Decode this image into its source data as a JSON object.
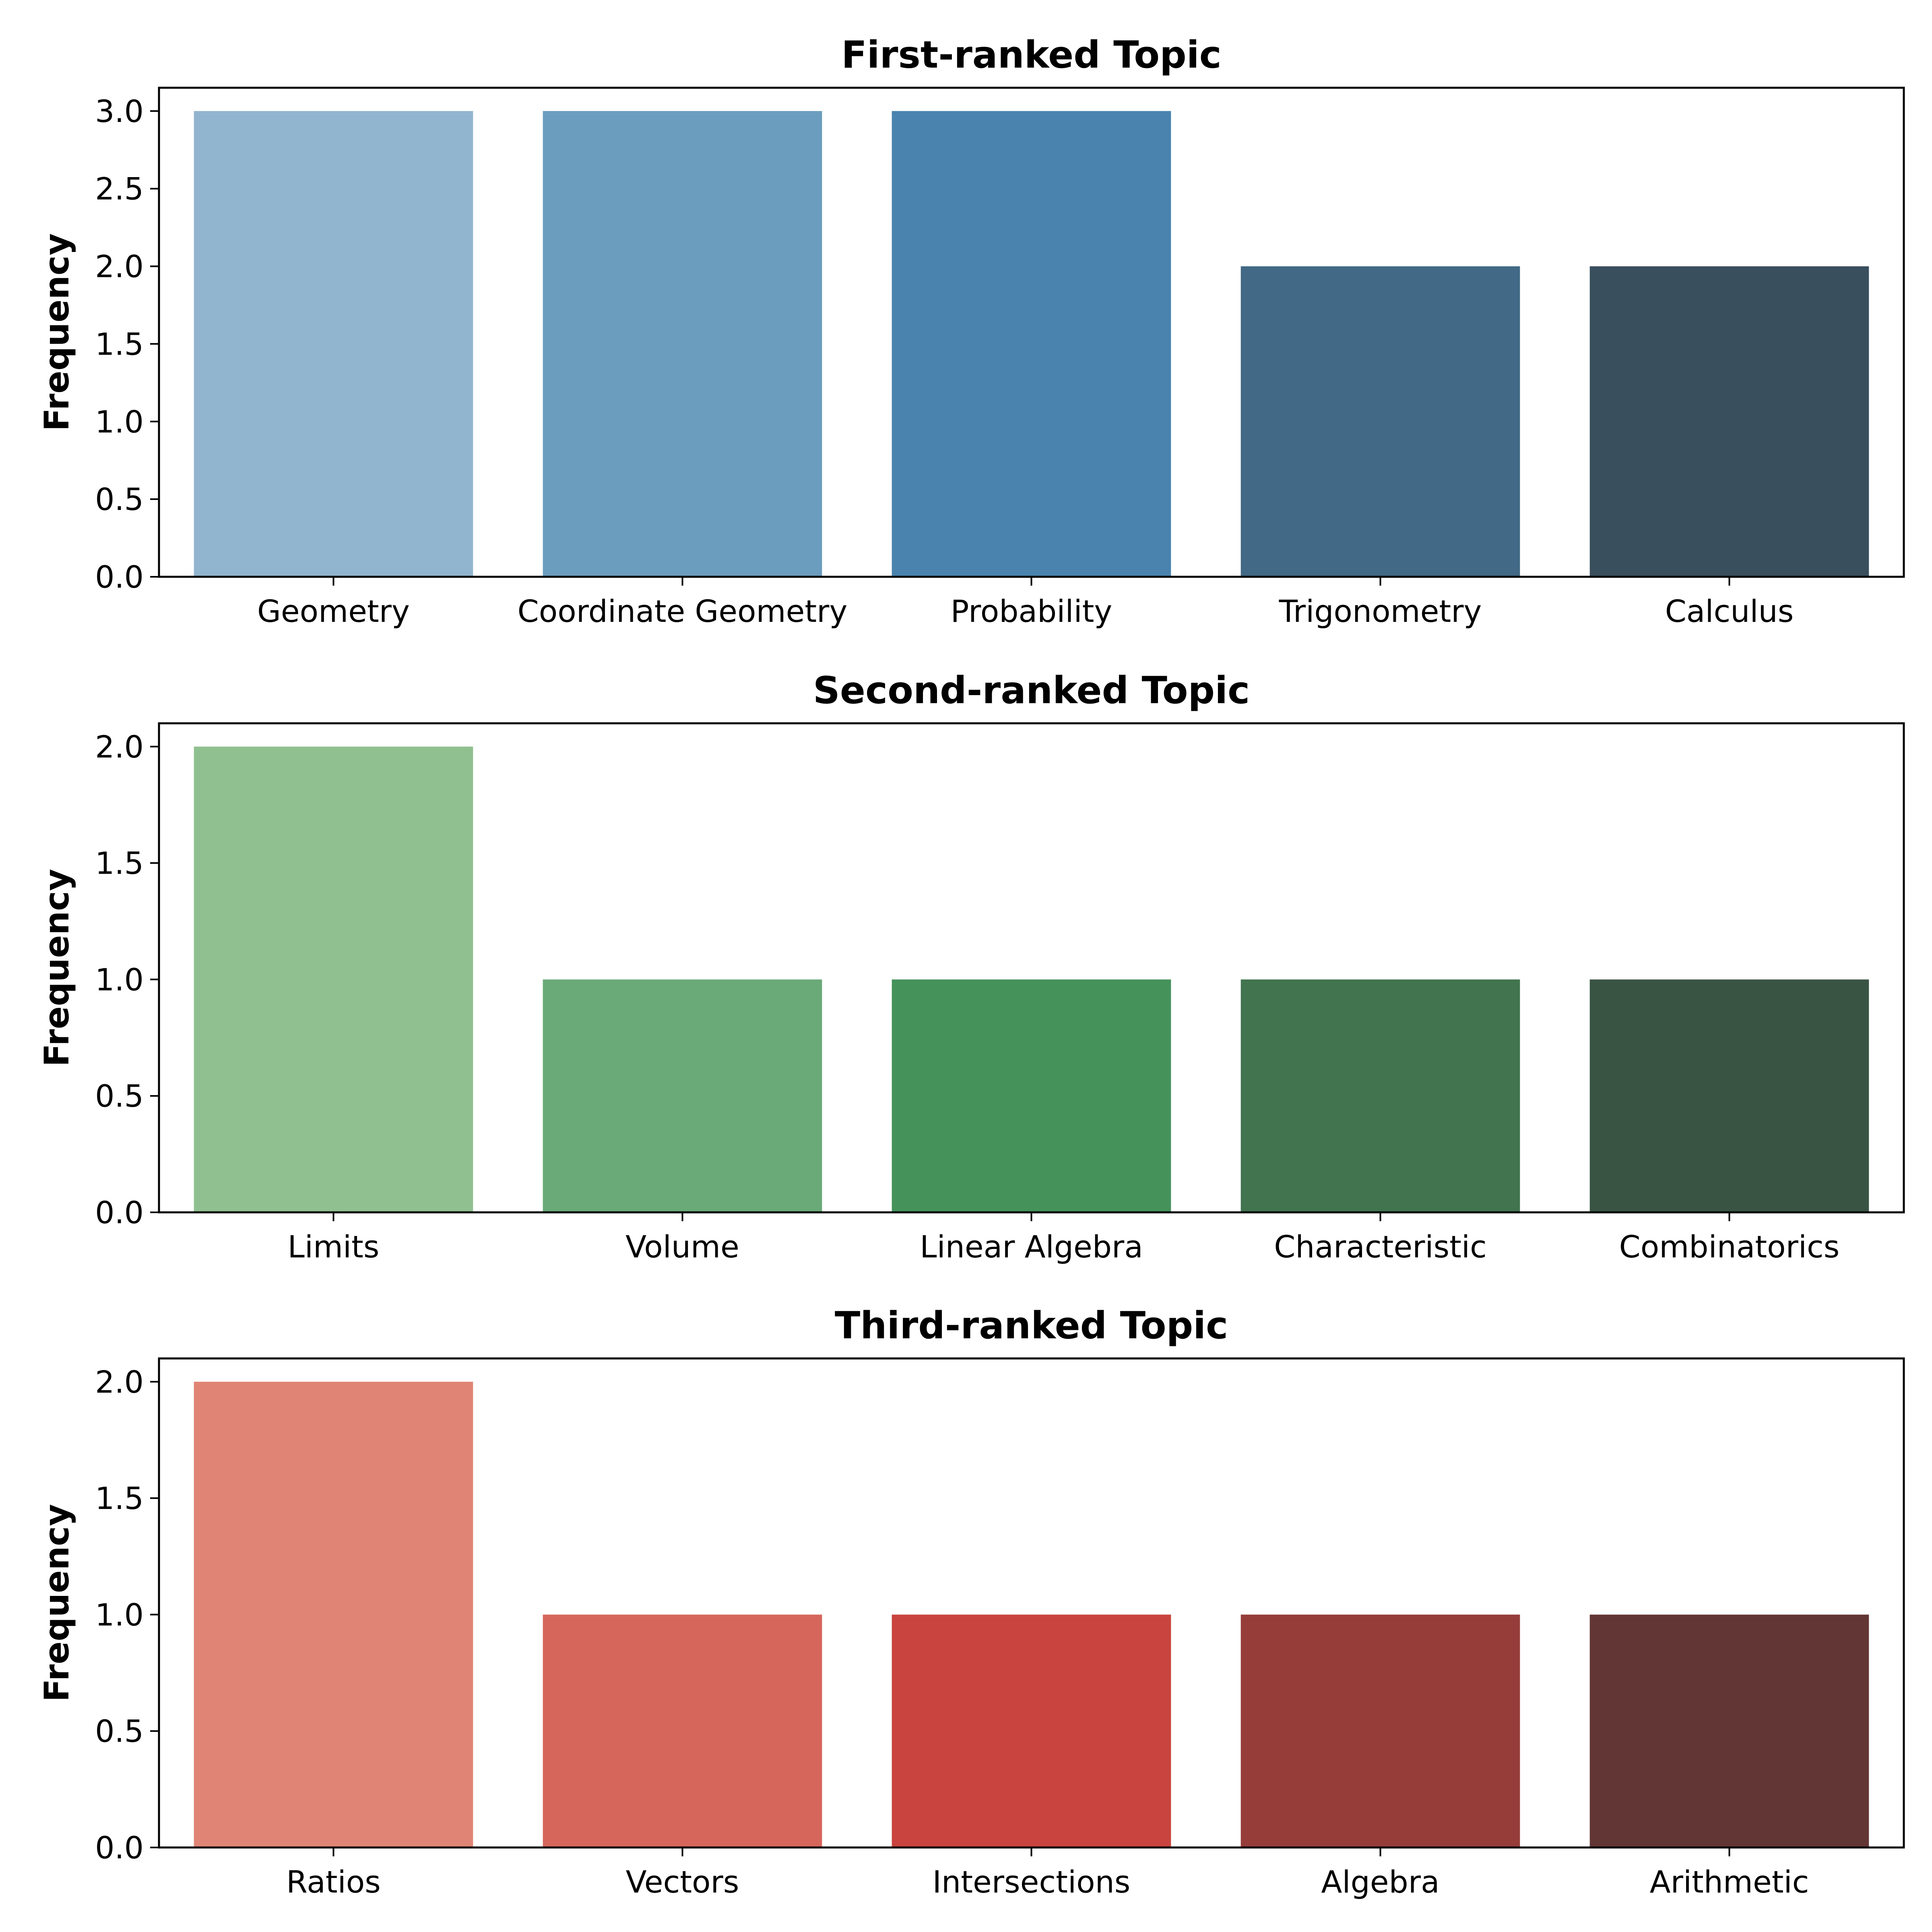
{
  "chart_data": [
    {
      "type": "bar",
      "title": "First-ranked Topic",
      "xlabel": "",
      "ylabel": "Frequency",
      "categories": [
        "Geometry",
        "Coordinate Geometry",
        "Probability",
        "Trigonometry",
        "Calculus"
      ],
      "values": [
        3,
        3,
        3,
        2,
        2
      ],
      "colors": [
        "#92b5cf",
        "#6b9dbf",
        "#4983ae",
        "#426985",
        "#3a4f5e"
      ],
      "ylim": [
        0,
        3.15
      ],
      "yticks": [
        "0.0",
        "0.5",
        "1.0",
        "1.5",
        "2.0",
        "2.5",
        "3.0"
      ],
      "grid": false
    },
    {
      "type": "bar",
      "title": "Second-ranked Topic",
      "xlabel": "",
      "ylabel": "Frequency",
      "categories": [
        "Limits",
        "Volume",
        "Linear Algebra",
        "Characteristic",
        "Combinatorics"
      ],
      "values": [
        2,
        1,
        1,
        1,
        1
      ],
      "colors": [
        "#90c090",
        "#6aa978",
        "#45925b",
        "#41744f",
        "#3a5444"
      ],
      "ylim": [
        0,
        2.1
      ],
      "yticks": [
        "0.0",
        "0.5",
        "1.0",
        "1.5",
        "2.0"
      ],
      "grid": false
    },
    {
      "type": "bar",
      "title": "Third-ranked Topic",
      "xlabel": "",
      "ylabel": "Frequency",
      "categories": [
        "Ratios",
        "Vectors",
        "Intersections",
        "Algebra",
        "Arithmetic"
      ],
      "values": [
        2,
        1,
        1,
        1,
        1
      ],
      "colors": [
        "#e08575",
        "#d6665b",
        "#c9443e",
        "#963d3a",
        "#633636"
      ],
      "ylim": [
        0,
        2.1
      ],
      "yticks": [
        "0.0",
        "0.5",
        "1.0",
        "1.5",
        "2.0"
      ],
      "grid": false
    }
  ]
}
